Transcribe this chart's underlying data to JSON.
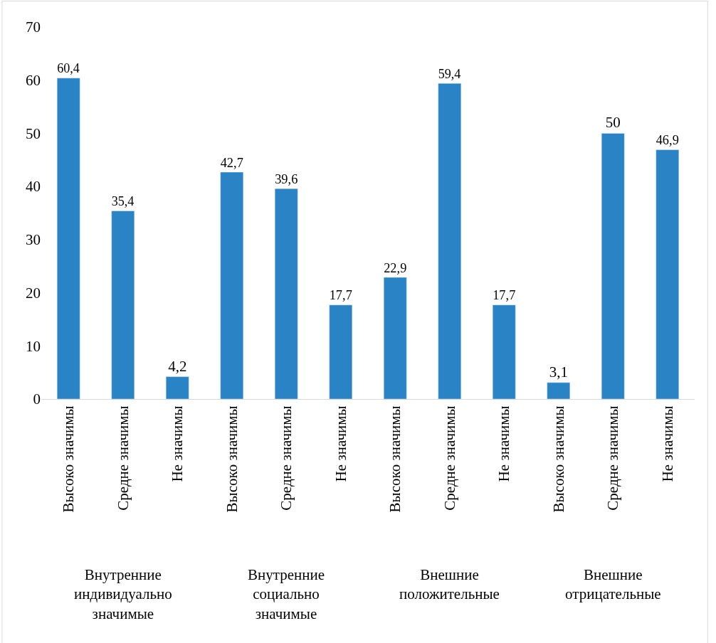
{
  "chart_data": {
    "type": "bar",
    "categories": [
      "Высоко значимы",
      "Средне значимы",
      "Не значимы",
      "Высоко значимы",
      "Средне значимы",
      "Не значимы",
      "Высоко значимы",
      "Средне значимы",
      "Не значимы",
      "Высоко значимы",
      "Средне значимы",
      "Не значимы"
    ],
    "values": [
      60.4,
      35.4,
      4.2,
      42.7,
      39.6,
      17.7,
      22.9,
      59.4,
      17.7,
      3.1,
      50,
      46.9
    ],
    "value_labels": [
      "60,4",
      "35,4",
      "4,2",
      "42,7",
      "39,6",
      "17,7",
      "22,9",
      "59,4",
      "17,7",
      "3,1",
      "50",
      "46,9"
    ],
    "color": "#2a83c5",
    "ylim": [
      0,
      70
    ],
    "yticks": [
      0,
      10,
      20,
      30,
      40,
      50,
      60,
      70
    ],
    "grid": false,
    "legend": false,
    "annotations": [
      "Внутренние индивидуально значимые",
      "Внутренние социально значимые",
      "Внешние положительные",
      "Внешние отрицательные"
    ]
  }
}
